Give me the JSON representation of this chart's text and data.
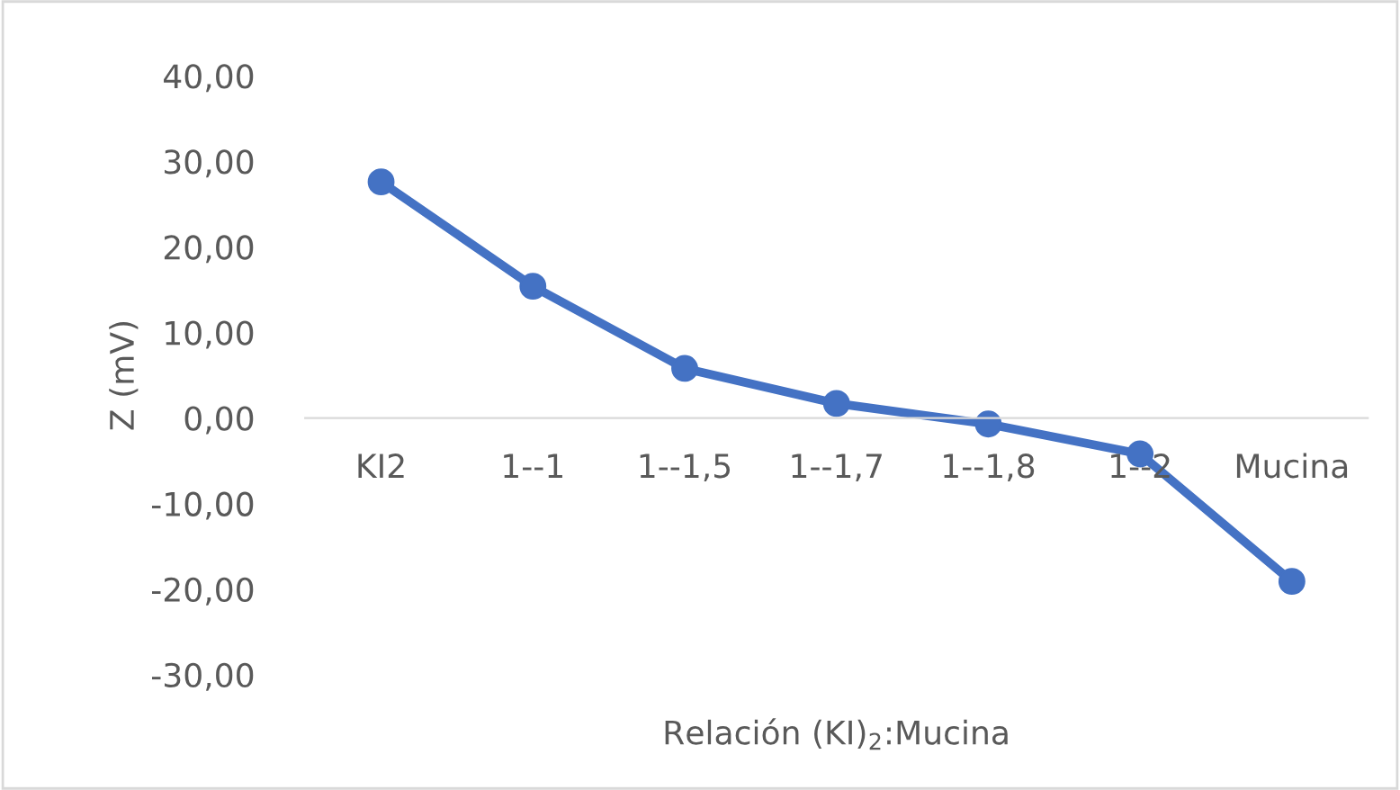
{
  "chart_data": {
    "type": "line",
    "xlabel": "Relación (KI)$_{2}$:Mucina",
    "ylabel": "Z (mV)",
    "categories": [
      "KI2",
      "1--1",
      "1--1,5",
      "1--1,7",
      "1--1,8",
      "1--2",
      "Mucina"
    ],
    "series": [
      {
        "color": "#4472c4",
        "values": [
          27.6,
          15.4,
          5.8,
          1.7,
          -0.7,
          -4.2,
          -19.1
        ]
      }
    ],
    "ylim": [
      -30,
      40
    ],
    "yticks": [
      {
        "value": -30,
        "label": "-30,00"
      },
      {
        "value": -20,
        "label": "-20,00"
      },
      {
        "value": -10,
        "label": "-10,00"
      },
      {
        "value": 0,
        "label": "0,00"
      },
      {
        "value": 10,
        "label": "10,00"
      },
      {
        "value": 20,
        "label": "20,00"
      },
      {
        "value": 30,
        "label": "30,00"
      },
      {
        "value": 40,
        "label": "40,00"
      }
    ],
    "marker": "circle",
    "line_style": "solid",
    "grid": false,
    "legend": false
  }
}
